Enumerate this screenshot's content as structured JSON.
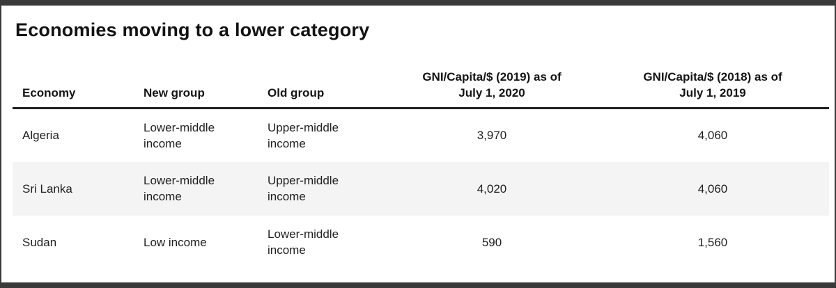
{
  "page": {
    "title": "Economies moving to a lower category"
  },
  "colors": {
    "frame": "#3a3a3a",
    "stripe": "#f4f4f4",
    "header_rule": "#1f1f1f",
    "text": "#202124"
  },
  "table": {
    "columns": [
      {
        "label": "Economy"
      },
      {
        "label": "New group"
      },
      {
        "label": "Old group"
      },
      {
        "line1": "GNI/Capita/$ (2019) as of",
        "line2": "July 1, 2020"
      },
      {
        "line1": "GNI/Capita/$ (2018) as of",
        "line2": "July 1, 2019"
      }
    ],
    "rows": [
      {
        "economy": "Algeria",
        "new_group": "Lower-middle income",
        "old_group": "Upper-middle income",
        "gni_2019": "3,970",
        "gni_2018": "4,060"
      },
      {
        "economy": "Sri Lanka",
        "new_group": "Lower-middle income",
        "old_group": "Upper-middle income",
        "gni_2019": "4,020",
        "gni_2018": "4,060"
      },
      {
        "economy": "Sudan",
        "new_group": "Low income",
        "old_group": "Lower-middle income",
        "gni_2019": "590",
        "gni_2018": "1,560"
      }
    ]
  },
  "chart_data": {
    "type": "table",
    "title": "Economies moving to a lower category",
    "columns": [
      "Economy",
      "New group",
      "Old group",
      "GNI/Capita/$ (2019) as of July 1, 2020",
      "GNI/Capita/$ (2018) as of July 1, 2019"
    ],
    "rows": [
      [
        "Algeria",
        "Lower-middle income",
        "Upper-middle income",
        3970,
        4060
      ],
      [
        "Sri Lanka",
        "Lower-middle income",
        "Upper-middle income",
        4020,
        4060
      ],
      [
        "Sudan",
        "Low income",
        "Lower-middle income",
        590,
        1560
      ]
    ]
  }
}
